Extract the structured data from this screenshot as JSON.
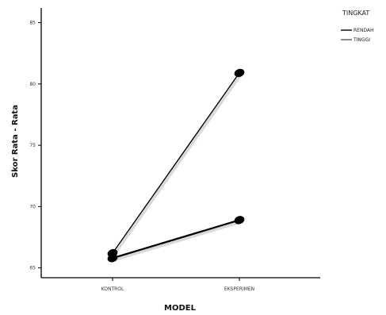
{
  "chart_data": {
    "type": "line",
    "title": "",
    "xlabel": "MODEL",
    "ylabel": "Skor Rata - Rata",
    "categories": [
      "KONTROL",
      "EKSPERIMEN"
    ],
    "series": [
      {
        "name": "RENDAH",
        "values": [
          66.2,
          80.9
        ]
      },
      {
        "name": "TINGGI",
        "values": [
          65.8,
          68.9
        ]
      }
    ],
    "ylim": [
      64.2,
      86.2
    ],
    "yticks": [
      "65",
      "70",
      "75",
      "80",
      "85"
    ],
    "legend": {
      "title": "TINGKAT",
      "placement": "top-right"
    },
    "grid": false,
    "colors": {
      "line": "#000000",
      "marker": "#000000",
      "axis": "#000000"
    }
  }
}
